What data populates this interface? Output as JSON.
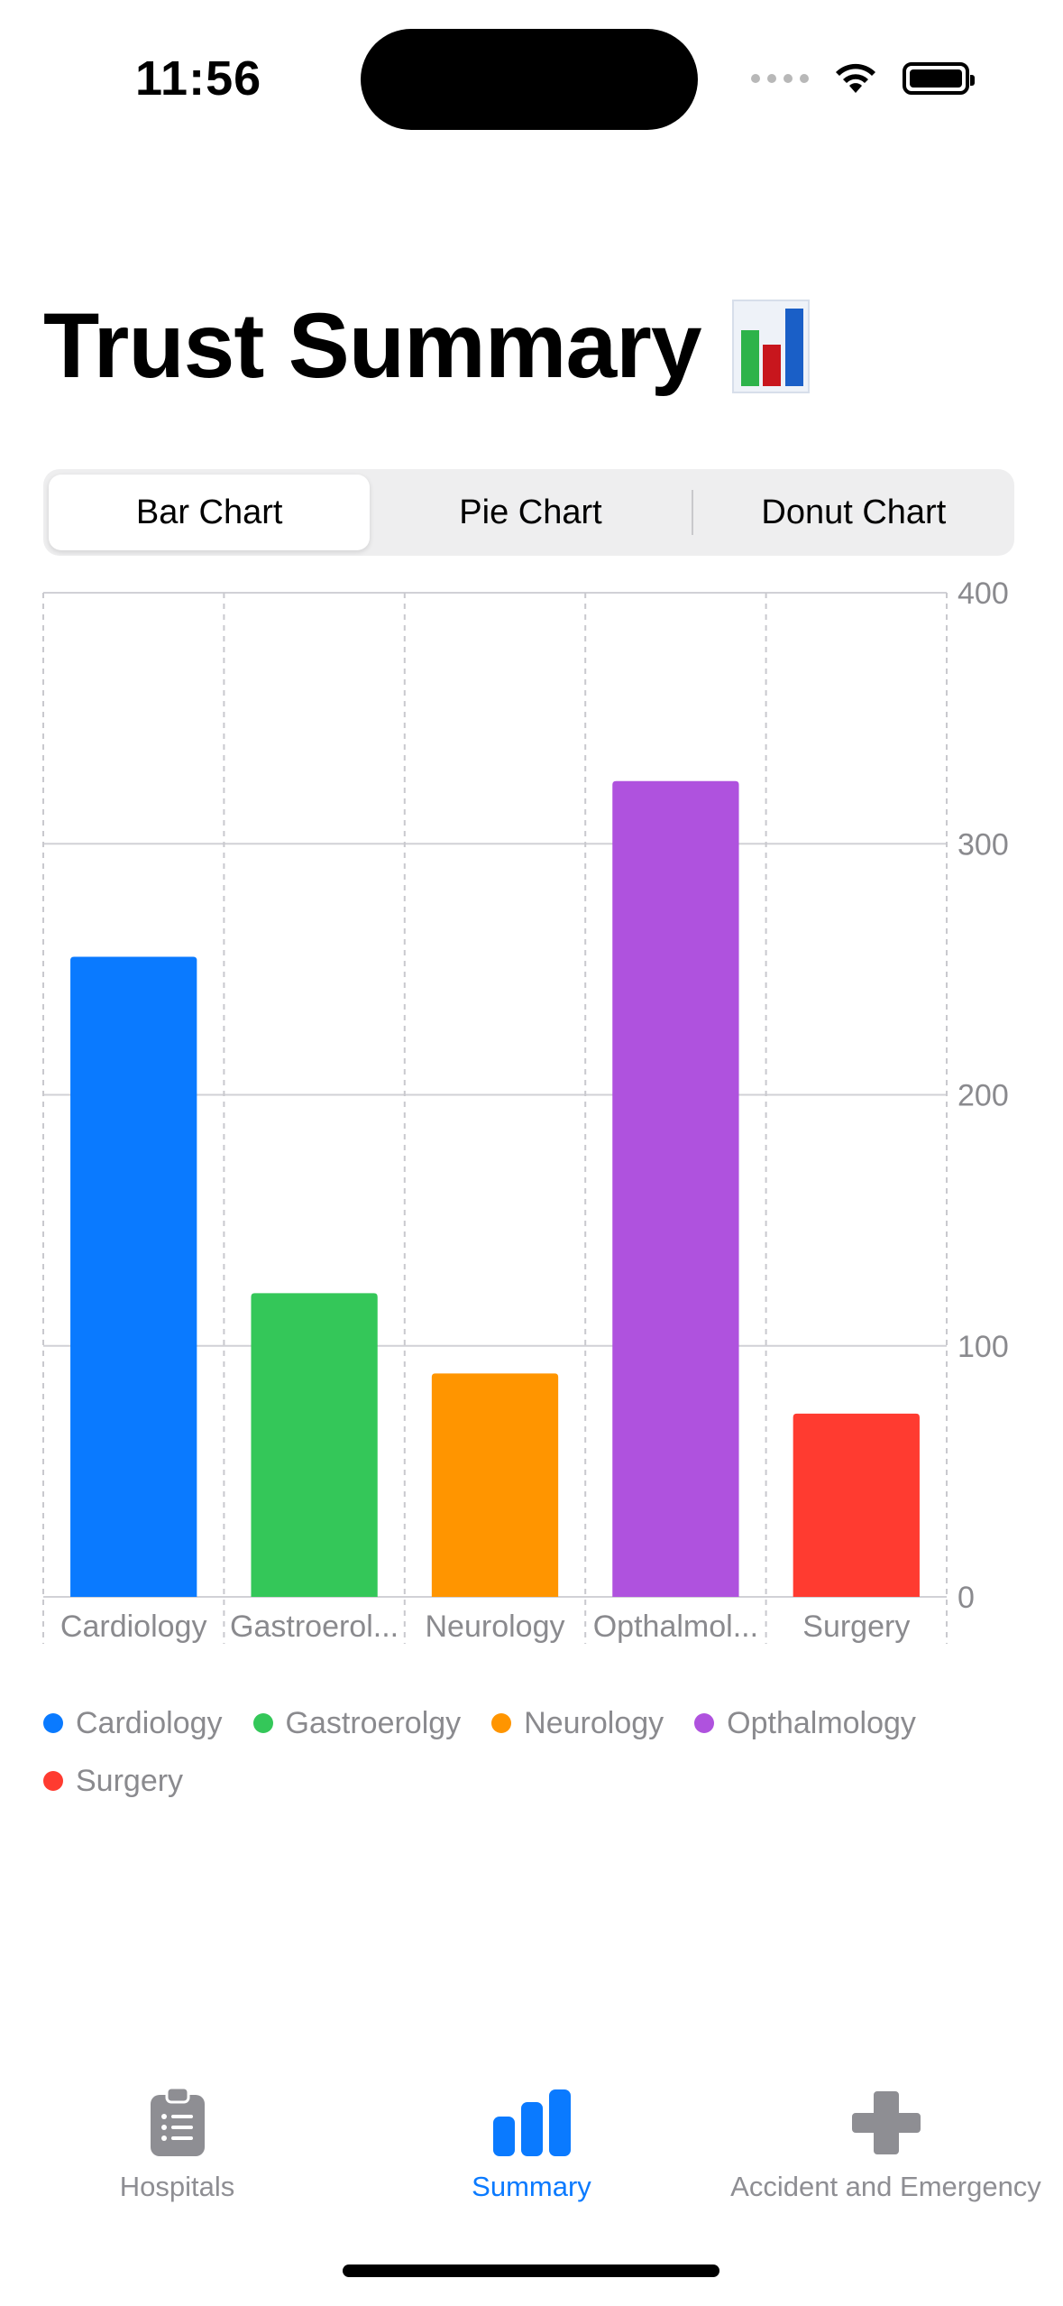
{
  "status_bar": {
    "time": "11:56"
  },
  "header": {
    "title": "Trust Summary"
  },
  "segmented_control": {
    "options": [
      {
        "label": "Bar Chart",
        "selected": true
      },
      {
        "label": "Pie Chart",
        "selected": false
      },
      {
        "label": "Donut Chart",
        "selected": false
      }
    ]
  },
  "chart_data": {
    "type": "bar",
    "categories": [
      "Cardiology",
      "Gastroerolgy",
      "Neurology",
      "Opthalmology",
      "Surgery"
    ],
    "category_tick_labels": [
      "Cardiology",
      "Gastroerol...",
      "Neurology",
      "Opthalmol...",
      "Surgery"
    ],
    "values": [
      255,
      121,
      89,
      325,
      73
    ],
    "colors": [
      "#0a7aff",
      "#34c759",
      "#ff9500",
      "#af52de",
      "#ff3b30"
    ],
    "yticks": [
      "0",
      "100",
      "200",
      "300",
      "400"
    ],
    "ylim": [
      0,
      400
    ],
    "grid": true,
    "legend_position": "bottom"
  },
  "legend": {
    "items": [
      {
        "label": "Cardiology",
        "color": "#0a7aff"
      },
      {
        "label": "Gastroerolgy",
        "color": "#34c759"
      },
      {
        "label": "Neurology",
        "color": "#ff9500"
      },
      {
        "label": "Opthalmology",
        "color": "#af52de"
      },
      {
        "label": "Surgery",
        "color": "#ff3b30"
      }
    ]
  },
  "tab_bar": {
    "items": [
      {
        "label": "Hospitals",
        "icon": "clipboard-list-icon",
        "active": false
      },
      {
        "label": "Summary",
        "icon": "bar-chart-icon",
        "active": true
      },
      {
        "label": "Accident and Emergency",
        "icon": "cross-icon",
        "active": false
      }
    ],
    "active_color": "#0a7aff",
    "inactive_color": "#8e8e93"
  }
}
